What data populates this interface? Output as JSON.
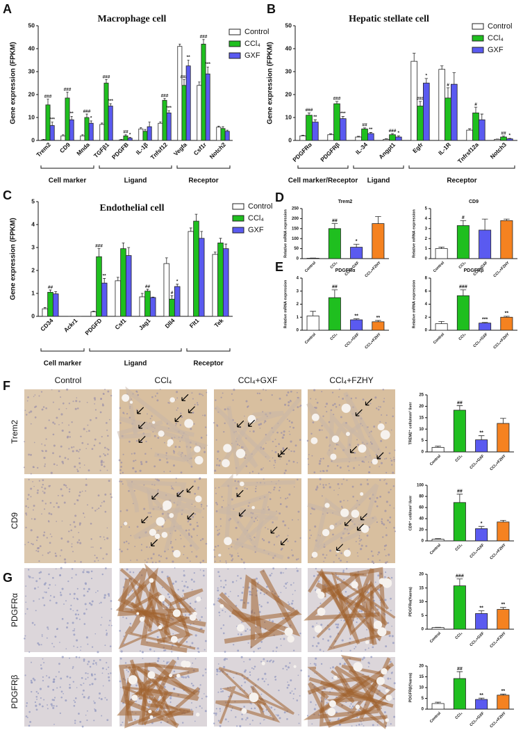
{
  "chart_data": [
    {
      "type": "bar",
      "panel": "A",
      "title": "Macrophage cell",
      "ylabel": "Gene expression (FPKM)",
      "categories": [
        "Trem2",
        "CD9",
        "Mnda",
        "TGFβ1",
        "PDGFB",
        "IL-1β",
        "Tnfsf12",
        "Vegfa",
        "Csf1r",
        "Notch2"
      ],
      "series": [
        {
          "name": "Control",
          "color": "#ffffff",
          "values": [
            0.3,
            2,
            2,
            7,
            0.3,
            5,
            7.5,
            41,
            24,
            5.8
          ],
          "errors": [
            0.2,
            0.5,
            0.5,
            0.6,
            0.2,
            0.6,
            0.6,
            1,
            1.5,
            0.4
          ],
          "significance": [
            null,
            null,
            null,
            null,
            null,
            null,
            null,
            null,
            null,
            null
          ]
        },
        {
          "name": "CCl₄",
          "color": "#1fbf1f",
          "values": [
            15.5,
            18.5,
            10,
            25,
            2,
            4,
            17.5,
            24,
            42,
            5.2
          ],
          "errors": [
            2.5,
            2.5,
            1.5,
            1.5,
            0.5,
            0.8,
            0.8,
            2.5,
            2,
            0.8
          ],
          "significance": [
            "###",
            "###",
            "###",
            "###",
            "##",
            null,
            "###",
            "###",
            "###",
            null
          ]
        },
        {
          "name": "GXF",
          "color": "#5a5af0",
          "values": [
            6.5,
            9,
            7.5,
            15,
            1,
            6,
            12,
            32.5,
            29,
            4
          ],
          "errors": [
            1.5,
            1.5,
            1,
            1,
            0.3,
            2,
            1,
            2.5,
            3,
            0.5
          ],
          "significance": [
            "***",
            "**",
            "*",
            "***",
            "*",
            null,
            "***",
            "**",
            "***",
            null
          ]
        }
      ],
      "groups": [
        {
          "label": "Cell marker",
          "span": 3
        },
        {
          "label": "Ligand",
          "span": 4
        },
        {
          "label": "Receptor",
          "span": 3
        }
      ],
      "ylim": [
        0,
        50
      ],
      "yticks": [
        0,
        10,
        20,
        30,
        40,
        50
      ]
    },
    {
      "type": "bar",
      "panel": "B",
      "title": "Hepatic stellate cell",
      "ylabel": "Gene expression (FPKM)",
      "categories": [
        "PDGFRα",
        "PDGFRβ",
        "IL-34",
        "Angpt1",
        "Egfr",
        "IL-1R",
        "Tnfrsf12a",
        "Notch3"
      ],
      "series": [
        {
          "name": "Control",
          "color": "#ffffff",
          "values": [
            2,
            2.5,
            1.5,
            0.5,
            34.5,
            31,
            4.5,
            0.5
          ],
          "errors": [
            0.3,
            0.4,
            0.3,
            0.2,
            3.5,
            1.5,
            0.6,
            0.1
          ],
          "significance": [
            null,
            null,
            null,
            null,
            null,
            null,
            null,
            null
          ]
        },
        {
          "name": "CCl₄",
          "color": "#1fbf1f",
          "values": [
            11,
            16,
            5,
            2.5,
            15,
            18.5,
            12,
            1.5
          ],
          "errors": [
            1,
            1,
            0.5,
            0.5,
            2,
            4.5,
            2.5,
            0.4
          ],
          "significance": [
            "###",
            "###",
            "##",
            "###",
            "###",
            "#",
            "#",
            "##"
          ]
        },
        {
          "name": "GXF",
          "color": "#5a5af0",
          "values": [
            8,
            9.5,
            3,
            1.5,
            25,
            24.5,
            9,
            0.7
          ],
          "errors": [
            1,
            1,
            0.5,
            0.5,
            2,
            5,
            2.5,
            0.2
          ],
          "significance": [
            "**",
            "***",
            "**",
            "*",
            "*",
            null,
            null,
            "*"
          ]
        }
      ],
      "groups": [
        {
          "label": "Cell marker/Receptor",
          "span": 2
        },
        {
          "label": "Ligand",
          "span": 2
        },
        {
          "label": "Receptor",
          "span": 4
        }
      ],
      "ylim": [
        0,
        50
      ],
      "yticks": [
        0,
        10,
        20,
        30,
        40,
        50
      ]
    },
    {
      "type": "bar",
      "panel": "C",
      "title": "Endothelial cell",
      "ylabel": "Gene expression (FPKM)",
      "categories": [
        "CD34",
        "Ackr1",
        "PDGFD",
        "Csf1",
        "Jag1",
        "Dll4",
        "Flt1",
        "Tek"
      ],
      "series": [
        {
          "name": "Control",
          "color": "#ffffff",
          "values": [
            0.33,
            0,
            0.2,
            1.55,
            0.85,
            2.3,
            3.7,
            2.7
          ],
          "errors": [
            0.05,
            0,
            0.03,
            0.15,
            0.15,
            0.25,
            0.15,
            0.1
          ],
          "significance": [
            null,
            null,
            null,
            null,
            null,
            null,
            null,
            null
          ]
        },
        {
          "name": "CCl₄",
          "color": "#1fbf1f",
          "values": [
            1.05,
            0,
            2.6,
            2.95,
            1.1,
            0.75,
            4.15,
            3.2
          ],
          "errors": [
            0.1,
            0,
            0.35,
            0.25,
            0.08,
            0.15,
            0.3,
            0.2
          ],
          "significance": [
            "##",
            null,
            "###",
            null,
            "##",
            "#",
            null,
            null
          ]
        },
        {
          "name": "GXF",
          "color": "#5a5af0",
          "values": [
            0.98,
            0,
            1.45,
            2.65,
            0.82,
            1.3,
            3.4,
            2.95
          ],
          "errors": [
            0.1,
            0,
            0.2,
            0.35,
            0.02,
            0.1,
            0.3,
            0.2
          ],
          "significance": [
            null,
            null,
            "**",
            null,
            null,
            "*",
            null,
            null
          ]
        }
      ],
      "groups": [
        {
          "label": "Cell marker",
          "span": 2
        },
        {
          "label": "Ligand",
          "span": 4
        },
        {
          "label": "Receptor",
          "span": 2
        }
      ],
      "ylim": [
        0,
        5
      ],
      "yticks": [
        0,
        1,
        2,
        3,
        4,
        5
      ]
    },
    {
      "type": "bar",
      "panel": "D",
      "title": "Trem2",
      "ylabel": "Relative mRNA expression",
      "categories": [
        "Control",
        "CCl₄",
        "CCl₄+GXF",
        "CCl₄+FZHY"
      ],
      "values": [
        2,
        150,
        57,
        175
      ],
      "errors": [
        1,
        25,
        15,
        35
      ],
      "colors": [
        "#ffffff",
        "#1fbf1f",
        "#5a5af0",
        "#f58220"
      ],
      "significance": [
        null,
        "##",
        "*",
        null
      ],
      "ylim": [
        0,
        250
      ],
      "yticks": [
        0,
        50,
        100,
        150,
        200,
        250
      ]
    },
    {
      "type": "bar",
      "title": "CD9",
      "ylabel": "Relative mRNA expression",
      "categories": [
        "Control",
        "CCl₄",
        "CCl₄+GXF",
        "CCl₄+FZHY"
      ],
      "values": [
        1,
        3.3,
        2.85,
        3.8
      ],
      "errors": [
        0.15,
        0.5,
        1.1,
        0.15
      ],
      "colors": [
        "#ffffff",
        "#1fbf1f",
        "#5a5af0",
        "#f58220"
      ],
      "significance": [
        null,
        "#",
        null,
        null
      ],
      "ylim": [
        0,
        5
      ],
      "yticks": [
        0,
        1,
        2,
        3,
        4,
        5
      ]
    },
    {
      "type": "bar",
      "panel": "E",
      "title": "PDGFRα",
      "ylabel": "Relative mRNA expression",
      "categories": [
        "Control",
        "CCl₄",
        "CCl₄+GXF",
        "CCl₄+FZHY"
      ],
      "values": [
        1.1,
        2.5,
        0.8,
        0.65
      ],
      "errors": [
        0.35,
        0.6,
        0.08,
        0.1
      ],
      "colors": [
        "#ffffff",
        "#1fbf1f",
        "#5a5af0",
        "#f58220"
      ],
      "significance": [
        null,
        "##",
        "**",
        "**"
      ],
      "ylim": [
        0,
        4
      ],
      "yticks": [
        0,
        1,
        2,
        3,
        4
      ]
    },
    {
      "type": "bar",
      "title": "PDGFRβ",
      "ylabel": "Relative mRNA expression",
      "categories": [
        "Control",
        "CCl₄",
        "CCl₄+GXF",
        "CCl₄+FZHY"
      ],
      "values": [
        1,
        5.3,
        1.1,
        2
      ],
      "errors": [
        0.35,
        0.9,
        0.1,
        0.15
      ],
      "colors": [
        "#ffffff",
        "#1fbf1f",
        "#5a5af0",
        "#f58220"
      ],
      "significance": [
        null,
        "###",
        "***",
        "**"
      ],
      "ylim": [
        0,
        8
      ],
      "yticks": [
        0,
        2,
        4,
        6,
        8
      ]
    },
    {
      "type": "bar",
      "ylabel": "TREM2⁺ cells/mm² liver",
      "categories": [
        "Control",
        "CCl₄",
        "CCl₄+GXF",
        "CCl₄+FZHY"
      ],
      "values": [
        2,
        18.3,
        5.3,
        12.5
      ],
      "errors": [
        0.5,
        2,
        1.8,
        2.2
      ],
      "colors": [
        "#ffffff",
        "#1fbf1f",
        "#5a5af0",
        "#f58220"
      ],
      "significance": [
        null,
        "##",
        "**",
        null
      ],
      "ylim": [
        0,
        25
      ],
      "yticks": [
        0,
        5,
        10,
        15,
        20,
        25
      ]
    },
    {
      "type": "bar",
      "ylabel": "CD9⁺ cell/mm² liver",
      "categories": [
        "Control",
        "CCl₄",
        "CCl₄+GXF",
        "CCl₄+FZHY"
      ],
      "values": [
        3,
        69,
        22,
        34
      ],
      "errors": [
        1,
        15,
        4,
        3
      ],
      "colors": [
        "#ffffff",
        "#1fbf1f",
        "#5a5af0",
        "#f58220"
      ],
      "significance": [
        null,
        "##",
        "*",
        null
      ],
      "ylim": [
        0,
        100
      ],
      "yticks": [
        0,
        20,
        40,
        60,
        80,
        100
      ]
    },
    {
      "type": "bar",
      "ylabel": "PDGFRα(%area)",
      "categories": [
        "Control",
        "CCl₄",
        "CCl₄+GXF",
        "CCl₄+FZHY"
      ],
      "values": [
        0.6,
        15.8,
        5.7,
        7.2
      ],
      "errors": [
        0.1,
        2.5,
        1,
        0.7
      ],
      "colors": [
        "#ffffff",
        "#1fbf1f",
        "#5a5af0",
        "#f58220"
      ],
      "significance": [
        null,
        "###",
        "**",
        "**"
      ],
      "ylim": [
        0,
        20
      ],
      "yticks": [
        0,
        5,
        10,
        15,
        20
      ]
    },
    {
      "type": "bar",
      "ylabel": "PDGFRβ(%area)",
      "categories": [
        "Control",
        "CCl₄",
        "CCl₄+GXF",
        "CCl₄+FZHY"
      ],
      "values": [
        2.6,
        14.2,
        4.5,
        6.5
      ],
      "errors": [
        0.6,
        3.2,
        0.6,
        0.5
      ],
      "colors": [
        "#ffffff",
        "#1fbf1f",
        "#5a5af0",
        "#f58220"
      ],
      "significance": [
        null,
        "##",
        "**",
        "**"
      ],
      "ylim": [
        0,
        20
      ],
      "yticks": [
        0,
        5,
        10,
        15,
        20
      ]
    }
  ],
  "micrographs": {
    "panels": [
      "F",
      "G"
    ],
    "columns": [
      "Control",
      "CCl₄",
      "CCl₄+GXF",
      "CCl₄+FZHY"
    ],
    "rows": [
      "Trem2",
      "CD9",
      "PDGFRα",
      "PDGFRβ"
    ]
  }
}
